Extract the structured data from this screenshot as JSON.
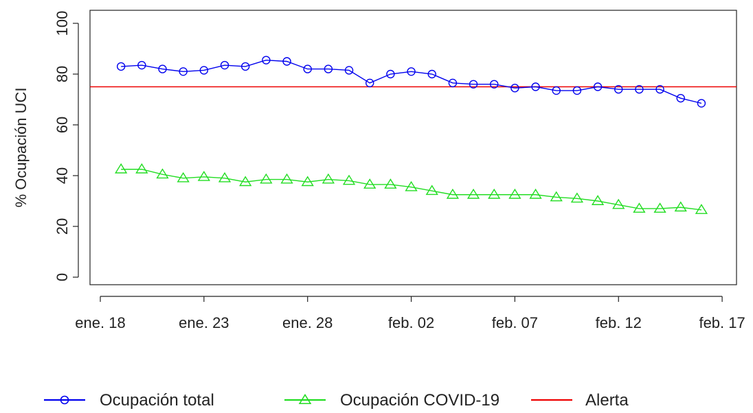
{
  "chart_data": {
    "type": "line",
    "title": "",
    "xlabel": "",
    "ylabel": "% Ocupación UCI",
    "ylim": [
      0,
      100
    ],
    "yticks": [
      0,
      20,
      40,
      60,
      80,
      100
    ],
    "x_start": "2021-01-19",
    "x_end": "2021-02-16",
    "xlim": [
      "2021-01-18",
      "2021-02-17"
    ],
    "xticks": [
      {
        "date": "2021-01-18",
        "label": "ene. 18"
      },
      {
        "date": "2021-01-23",
        "label": "ene. 23"
      },
      {
        "date": "2021-01-28",
        "label": "ene. 28"
      },
      {
        "date": "2021-02-02",
        "label": "feb. 02"
      },
      {
        "date": "2021-02-07",
        "label": "feb. 07"
      },
      {
        "date": "2021-02-12",
        "label": "feb. 12"
      },
      {
        "date": "2021-02-17",
        "label": "feb. 17"
      }
    ],
    "grid": false,
    "legend_position": "bottom",
    "series": [
      {
        "name": "Ocupación total",
        "color": "#0000ee",
        "marker": "circle",
        "values": [
          83,
          83.5,
          82,
          81,
          81.5,
          83.5,
          83,
          85.5,
          85,
          82,
          82,
          81.5,
          76.5,
          80,
          81,
          80,
          76.5,
          76,
          76,
          74.5,
          75,
          73.5,
          73.5,
          75,
          74,
          74,
          74,
          70.5,
          68.5
        ]
      },
      {
        "name": "Ocupación COVID-19",
        "color": "#22dd22",
        "marker": "triangle",
        "values": [
          42.5,
          42.5,
          40.5,
          39,
          39.5,
          39,
          37.5,
          38.5,
          38.5,
          37.5,
          38.5,
          38,
          36.5,
          36.5,
          35.5,
          34,
          32.5,
          32.5,
          32.5,
          32.5,
          32.5,
          31.5,
          31,
          30,
          28.5,
          27,
          27,
          27.5,
          26.5
        ]
      }
    ],
    "reference_lines": [
      {
        "name": "Alerta",
        "y": 75,
        "color": "#ee0000"
      }
    ]
  }
}
